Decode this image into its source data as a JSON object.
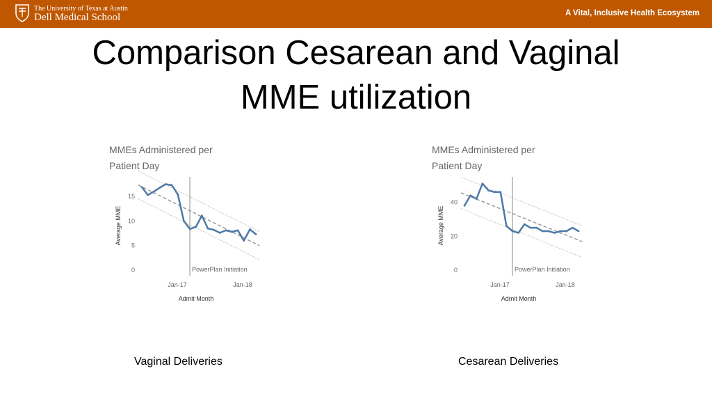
{
  "header": {
    "university": "The University of Texas at Austin",
    "school": "Dell Medical School",
    "tagline": "A Vital, Inclusive Health Ecosystem",
    "accent_color": "#bf5700"
  },
  "title": {
    "line1": "Comparison Cesarean and Vaginal",
    "line2": "MME utilization"
  },
  "captions": {
    "vaginal": "Vaginal Deliveries",
    "cesarean": "Cesarean Deliveries"
  },
  "chart_data": [
    {
      "type": "line",
      "title_lines": [
        "MMEs Administered per",
        "Patient Day"
      ],
      "xlabel": "Admit Month",
      "ylabel": "Average MME",
      "x_ticks": [
        "Jan-17",
        "Jan-18"
      ],
      "y_ticks": [
        0,
        5,
        10,
        15
      ],
      "ylim": [
        0,
        19
      ],
      "annotation": "PowerPlan Initiation",
      "annotation_index": 8,
      "series_color": "#4e79a7",
      "values": [
        16.9,
        15.3,
        16.0,
        16.8,
        17.5,
        17.3,
        15.4,
        10.0,
        8.4,
        8.8,
        11.1,
        8.5,
        8.2,
        7.6,
        8.1,
        7.8,
        8.1,
        6.0,
        8.3,
        7.3
      ]
    },
    {
      "type": "line",
      "title_lines": [
        "MMEs Administered per",
        "Patient Day"
      ],
      "xlabel": "Admit Month",
      "ylabel": "Average MME",
      "x_ticks": [
        "Jan-17",
        "Jan-18"
      ],
      "y_ticks": [
        0,
        20,
        40
      ],
      "ylim": [
        0,
        55
      ],
      "annotation": "PowerPlan Initiation",
      "annotation_index": 8,
      "series_color": "#4e79a7",
      "values": [
        38,
        44,
        42,
        51,
        47,
        46,
        46,
        26,
        23,
        22,
        27,
        25,
        25,
        23,
        23,
        22,
        23,
        23,
        25,
        23
      ]
    }
  ]
}
